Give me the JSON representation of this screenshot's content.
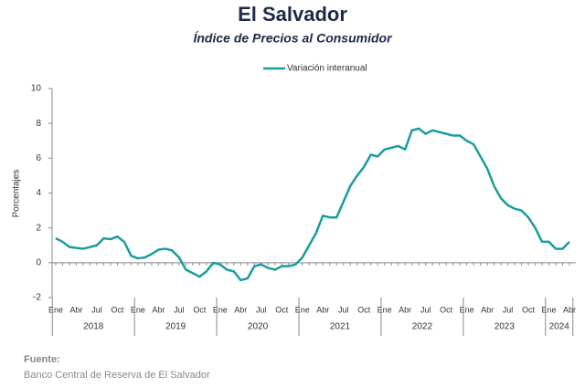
{
  "chart_data": {
    "type": "line",
    "title": "El Salvador",
    "subtitle": "Índice de Precios al Consumidor",
    "y_label": "Porcentajes",
    "legend_position": "top",
    "categories": [
      "Ene",
      null,
      null,
      "Abr",
      null,
      null,
      "Jul",
      null,
      null,
      "Oct",
      null,
      null,
      "Ene",
      null,
      null,
      "Abr",
      null,
      null,
      "Jul",
      null,
      null,
      "Oct",
      null,
      null,
      "Ene",
      null,
      null,
      "Abr",
      null,
      null,
      "Jul",
      null,
      null,
      "Oct",
      null,
      null,
      "Ene",
      null,
      null,
      "Abr",
      null,
      null,
      "Jul",
      null,
      null,
      "Oct",
      null,
      null,
      "Ene",
      null,
      null,
      "Abr",
      null,
      null,
      "Jul",
      null,
      null,
      "Oct",
      null,
      null,
      "Ene",
      null,
      null,
      "Abr",
      null,
      null,
      "Jul",
      null,
      null,
      "Oct",
      null,
      null,
      "Ene",
      null,
      null,
      "Abr"
    ],
    "years": [
      "2018",
      "2019",
      "2020",
      "2021",
      "2022",
      "2023",
      "2024"
    ],
    "series": [
      {
        "name": "Variación interanual",
        "color": "#1a9e9a",
        "values": [
          1.4,
          1.2,
          0.9,
          0.85,
          0.8,
          0.9,
          1.0,
          1.4,
          1.35,
          1.5,
          1.2,
          0.4,
          0.25,
          0.3,
          0.5,
          0.75,
          0.8,
          0.7,
          0.3,
          -0.4,
          -0.6,
          -0.8,
          -0.5,
          0.0,
          -0.1,
          -0.4,
          -0.5,
          -1.0,
          -0.9,
          -0.2,
          -0.1,
          -0.3,
          -0.4,
          -0.2,
          -0.2,
          -0.1,
          0.3,
          1.0,
          1.7,
          2.7,
          2.6,
          2.6,
          3.5,
          4.4,
          5.0,
          5.5,
          6.2,
          6.1,
          6.5,
          6.6,
          6.7,
          6.5,
          7.6,
          7.7,
          7.4,
          7.6,
          7.5,
          7.4,
          7.3,
          7.3,
          7.0,
          6.8,
          6.1,
          5.4,
          4.4,
          3.7,
          3.3,
          3.1,
          3.0,
          2.6,
          2.0,
          1.2,
          1.2,
          0.8,
          0.8,
          1.2
        ]
      }
    ],
    "ylim": [
      -2,
      10
    ],
    "yticks": [
      -2,
      0,
      2,
      4,
      6,
      8,
      10
    ],
    "grid": false
  },
  "source": {
    "heading": "Fuente:",
    "text": "Banco Central de Reserva de El Salvador"
  }
}
